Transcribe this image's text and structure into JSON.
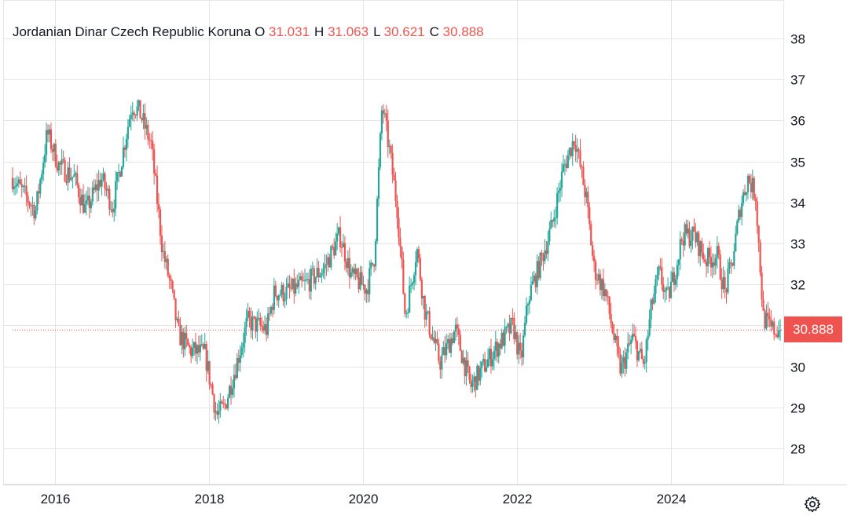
{
  "legend": {
    "name": "Jordanian Dinar Czech Republic Koruna",
    "o_label": "O",
    "o_value": "31.031",
    "h_label": "H",
    "h_value": "31.063",
    "l_label": "L",
    "l_value": "30.621",
    "c_label": "C",
    "c_value": "30.888"
  },
  "last_price_label": "30.888",
  "settings_icon": "gear-icon",
  "colors": {
    "up": "#26a69a",
    "down": "#ef5350",
    "grid": "#e6e6e6",
    "text": "#131722"
  },
  "chart_data": {
    "type": "candlestick",
    "y_ticks": [
      "28",
      "29",
      "30",
      "31",
      "32",
      "33",
      "34",
      "35",
      "36",
      "37",
      "38"
    ],
    "ylim": [
      27.1,
      38.9
    ],
    "x_ticks": [
      "2016",
      "2018",
      "2020",
      "2022",
      "2024"
    ],
    "xlim": [
      2015.45,
      2025.45
    ],
    "last_close": 30.888,
    "grid": true,
    "path": [
      [
        2015.45,
        34.6
      ],
      [
        2015.6,
        34.2
      ],
      [
        2015.75,
        33.8
      ],
      [
        2015.9,
        35.7
      ],
      [
        2016.05,
        34.9
      ],
      [
        2016.25,
        34.6
      ],
      [
        2016.4,
        33.8
      ],
      [
        2016.6,
        34.6
      ],
      [
        2016.75,
        33.9
      ],
      [
        2016.95,
        35.9
      ],
      [
        2017.0,
        36.4
      ],
      [
        2017.1,
        36.2
      ],
      [
        2017.25,
        35.4
      ],
      [
        2017.4,
        32.8
      ],
      [
        2017.5,
        32.0
      ],
      [
        2017.6,
        30.8
      ],
      [
        2017.75,
        30.4
      ],
      [
        2017.95,
        30.3
      ],
      [
        2018.05,
        29.3
      ],
      [
        2018.1,
        28.8
      ],
      [
        2018.2,
        29.0
      ],
      [
        2018.35,
        30.0
      ],
      [
        2018.5,
        31.1
      ],
      [
        2018.75,
        30.9
      ],
      [
        2018.85,
        31.8
      ],
      [
        2019.0,
        31.8
      ],
      [
        2019.25,
        32.0
      ],
      [
        2019.5,
        32.4
      ],
      [
        2019.7,
        33.2
      ],
      [
        2019.85,
        32.2
      ],
      [
        2020.05,
        31.9
      ],
      [
        2020.15,
        32.7
      ],
      [
        2020.25,
        36.4
      ],
      [
        2020.35,
        35.2
      ],
      [
        2020.45,
        33.8
      ],
      [
        2020.55,
        31.2
      ],
      [
        2020.65,
        32.3
      ],
      [
        2020.7,
        32.9
      ],
      [
        2020.8,
        31.4
      ],
      [
        2020.95,
        30.4
      ],
      [
        2021.0,
        30.1
      ],
      [
        2021.2,
        30.9
      ],
      [
        2021.4,
        29.5
      ],
      [
        2021.5,
        29.8
      ],
      [
        2021.75,
        30.5
      ],
      [
        2021.95,
        31.0
      ],
      [
        2022.05,
        30.1
      ],
      [
        2022.15,
        31.7
      ],
      [
        2022.3,
        32.5
      ],
      [
        2022.45,
        33.4
      ],
      [
        2022.6,
        34.8
      ],
      [
        2022.75,
        35.6
      ],
      [
        2022.9,
        34.1
      ],
      [
        2023.0,
        32.4
      ],
      [
        2023.15,
        31.8
      ],
      [
        2023.3,
        30.3
      ],
      [
        2023.35,
        29.9
      ],
      [
        2023.5,
        30.7
      ],
      [
        2023.65,
        30.0
      ],
      [
        2023.75,
        31.5
      ],
      [
        2023.85,
        32.3
      ],
      [
        2023.95,
        31.6
      ],
      [
        2024.05,
        32.3
      ],
      [
        2024.15,
        33.2
      ],
      [
        2024.3,
        33.2
      ],
      [
        2024.45,
        32.6
      ],
      [
        2024.6,
        32.7
      ],
      [
        2024.7,
        31.8
      ],
      [
        2024.8,
        32.6
      ],
      [
        2024.9,
        33.9
      ],
      [
        2025.0,
        34.6
      ],
      [
        2025.1,
        34.2
      ],
      [
        2025.2,
        31.2
      ],
      [
        2025.3,
        30.9
      ],
      [
        2025.4,
        30.888
      ]
    ]
  }
}
